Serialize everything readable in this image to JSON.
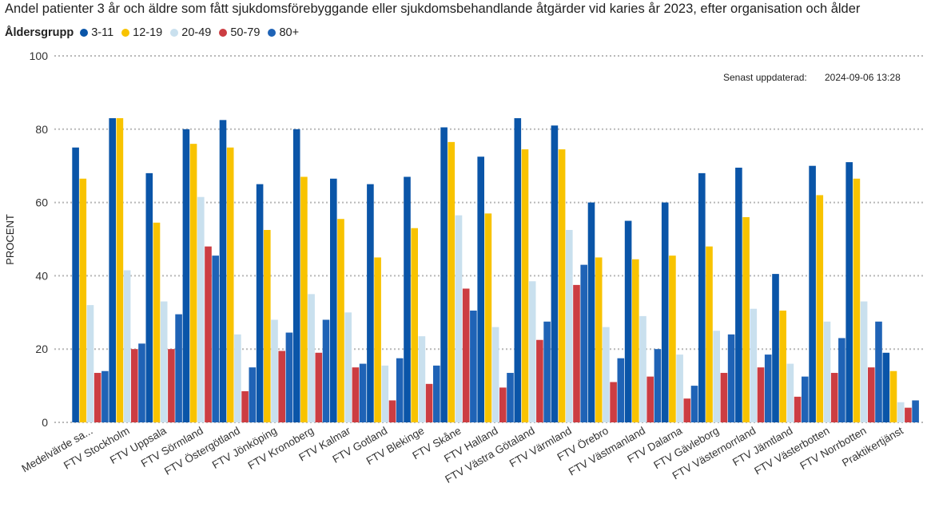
{
  "chart_data": {
    "type": "bar",
    "title": "Andel patienter 3 år och äldre som fått sjukdomsförebyggande eller sjukdomsbehandlande åtgärder vid karies år 2023, efter organisation och ålder",
    "legend_title": "Åldersgrupp",
    "legend_position": "top-left",
    "ylabel": "PROCENT",
    "xlabel": "",
    "ylim": [
      0,
      100
    ],
    "yticks": [
      0,
      20,
      40,
      60,
      80,
      100
    ],
    "grid": true,
    "updated_label": "Senast uppdaterad:",
    "updated_value": "2024-09-06 13:28",
    "categories": [
      "Medelvärde sa...",
      "FTV Stockholm",
      "FTV Uppsala",
      "FTV Sörmland",
      "FTV Östergötland",
      "FTV Jönköping",
      "FTV Kronoberg",
      "FTV Kalmar",
      "FTV Gotland",
      "FTV Blekinge",
      "FTV Skåne",
      "FTV Halland",
      "FTV Västra Götaland",
      "FTV Värmland",
      "FTV Örebro",
      "FTV Västmanland",
      "FTV Dalarna",
      "FTV Gävleborg",
      "FTV Västernorrland",
      "FTV Jämtland",
      "FTV Västerbotten",
      "FTV Norrbotten",
      "Praktikertjänst"
    ],
    "series": [
      {
        "name": "3-11",
        "color": "#0a55a8",
        "values": [
          75,
          83,
          68,
          80,
          82.5,
          65,
          80,
          66.5,
          65,
          67,
          80.5,
          72.5,
          83,
          81,
          60,
          55,
          60,
          68,
          69.5,
          40.5,
          70,
          71,
          19
        ]
      },
      {
        "name": "12-19",
        "color": "#f8c300",
        "values": [
          66.5,
          83,
          54.5,
          76,
          75,
          52.5,
          67,
          55.5,
          45,
          53,
          76.5,
          57,
          74.5,
          74.5,
          45,
          44.5,
          45.5,
          48,
          56,
          30.5,
          62,
          66.5,
          14
        ]
      },
      {
        "name": "20-49",
        "color": "#c9e0ee",
        "values": [
          32,
          41.5,
          33,
          61.5,
          24,
          28,
          35,
          30,
          15.5,
          23.5,
          56.5,
          26,
          38.5,
          52.5,
          26,
          29,
          18.5,
          25,
          31,
          16,
          27.5,
          33,
          5.5
        ]
      },
      {
        "name": "50-79",
        "color": "#cc3d42",
        "values": [
          13.5,
          20,
          20,
          48,
          8.5,
          19.5,
          19,
          15,
          6,
          10.5,
          36.5,
          9.5,
          22.5,
          37.5,
          11,
          12.5,
          6.5,
          13.5,
          15,
          7,
          13.5,
          15,
          4
        ]
      },
      {
        "name": "80+",
        "color": "#1f63b6",
        "values": [
          14,
          21.5,
          29.5,
          45.5,
          15,
          24.5,
          28,
          16,
          17.5,
          15.5,
          30.5,
          13.5,
          27.5,
          43,
          17.5,
          20,
          10,
          24,
          18.5,
          12.5,
          23,
          27.5,
          6
        ]
      }
    ]
  }
}
